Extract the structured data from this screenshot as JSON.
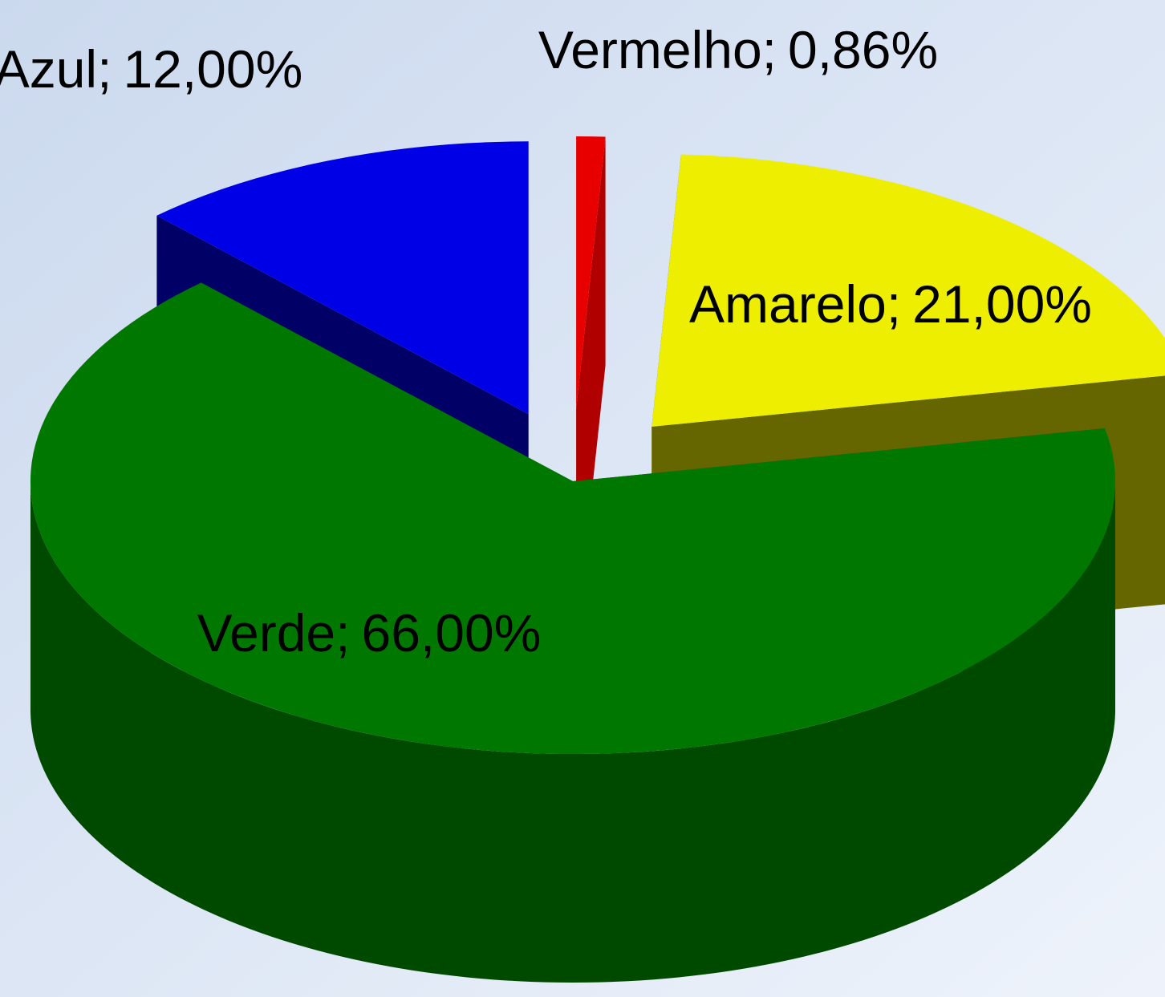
{
  "chart_data": {
    "type": "pie3d",
    "categories": [
      "Vermelho",
      "Amarelo",
      "Verde",
      "Azul"
    ],
    "values": [
      0.86,
      21,
      66,
      12
    ],
    "value_labels": [
      "0,86%",
      "21,00%",
      "66,00%",
      "12,00%"
    ],
    "label_separator": ";",
    "colors": [
      "#e80000",
      "#eeee00",
      "#007800",
      "#0000e6"
    ],
    "side_colors": [
      "#b00000",
      "#666600",
      "#004a00",
      "#000066"
    ]
  }
}
